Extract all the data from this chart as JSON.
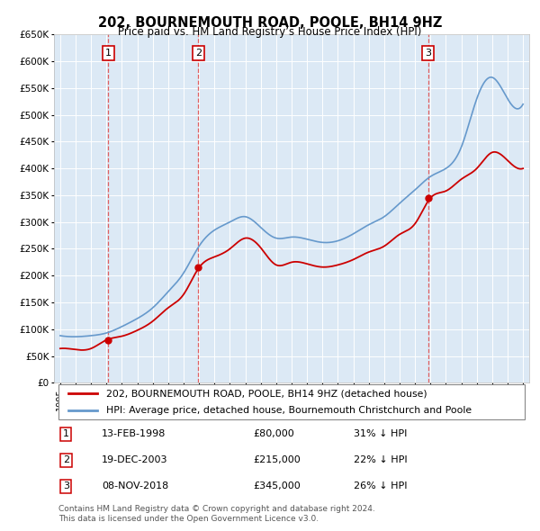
{
  "title": "202, BOURNEMOUTH ROAD, POOLE, BH14 9HZ",
  "subtitle": "Price paid vs. HM Land Registry’s House Price Index (HPI)",
  "legend_red": "202, BOURNEMOUTH ROAD, POOLE, BH14 9HZ (detached house)",
  "legend_blue": "HPI: Average price, detached house, Bournemouth Christchurch and Poole",
  "footer1": "Contains HM Land Registry data © Crown copyright and database right 2024.",
  "footer2": "This data is licensed under the Open Government Licence v3.0.",
  "sales": [
    {
      "num": 1,
      "date": "13-FEB-1998",
      "price": 80000,
      "pct": "31%",
      "dir": "↓",
      "year": 1998.12
    },
    {
      "num": 2,
      "date": "19-DEC-2003",
      "price": 215000,
      "pct": "22%",
      "dir": "↓",
      "year": 2003.96
    },
    {
      "num": 3,
      "date": "08-NOV-2018",
      "price": 345000,
      "pct": "26%",
      "dir": "↓",
      "year": 2018.85
    }
  ],
  "ylim": [
    0,
    650000
  ],
  "yticks": [
    0,
    50000,
    100000,
    150000,
    200000,
    250000,
    300000,
    350000,
    400000,
    450000,
    500000,
    550000,
    600000,
    650000
  ],
  "background_color": "#ffffff",
  "plot_bg_color": "#dce9f5",
  "grid_color": "#ffffff",
  "red_color": "#cc0000",
  "blue_color": "#6699cc",
  "dashed_color": "#e05050",
  "hpi_years": [
    1995,
    1996,
    1997,
    1998,
    1999,
    2000,
    2001,
    2002,
    2003,
    2004,
    2005,
    2006,
    2007,
    2008,
    2009,
    2010,
    2011,
    2012,
    2013,
    2014,
    2015,
    2016,
    2017,
    2018,
    2019,
    2020,
    2021,
    2022,
    2023,
    2024,
    2025
  ],
  "hpi_values": [
    88000,
    86000,
    88000,
    93000,
    105000,
    120000,
    140000,
    170000,
    205000,
    255000,
    285000,
    300000,
    310000,
    290000,
    270000,
    272000,
    268000,
    262000,
    265000,
    278000,
    295000,
    310000,
    335000,
    360000,
    385000,
    400000,
    440000,
    530000,
    570000,
    530000,
    520000
  ],
  "red_years": [
    1995,
    1996,
    1997,
    1998,
    1999,
    2000,
    2001,
    2002,
    2003,
    2004,
    2005,
    2006,
    2007,
    2008,
    2009,
    2010,
    2011,
    2012,
    2013,
    2014,
    2015,
    2016,
    2017,
    2018,
    2019,
    2020,
    2021,
    2022,
    2023,
    2024,
    2025
  ],
  "red_values": [
    64000,
    62000,
    64000,
    80000,
    87000,
    98000,
    115000,
    140000,
    165000,
    215000,
    235000,
    250000,
    270000,
    252000,
    220000,
    225000,
    222000,
    216000,
    220000,
    230000,
    244000,
    255000,
    277000,
    297000,
    345000,
    358000,
    380000,
    400000,
    430000,
    415000,
    400000
  ]
}
